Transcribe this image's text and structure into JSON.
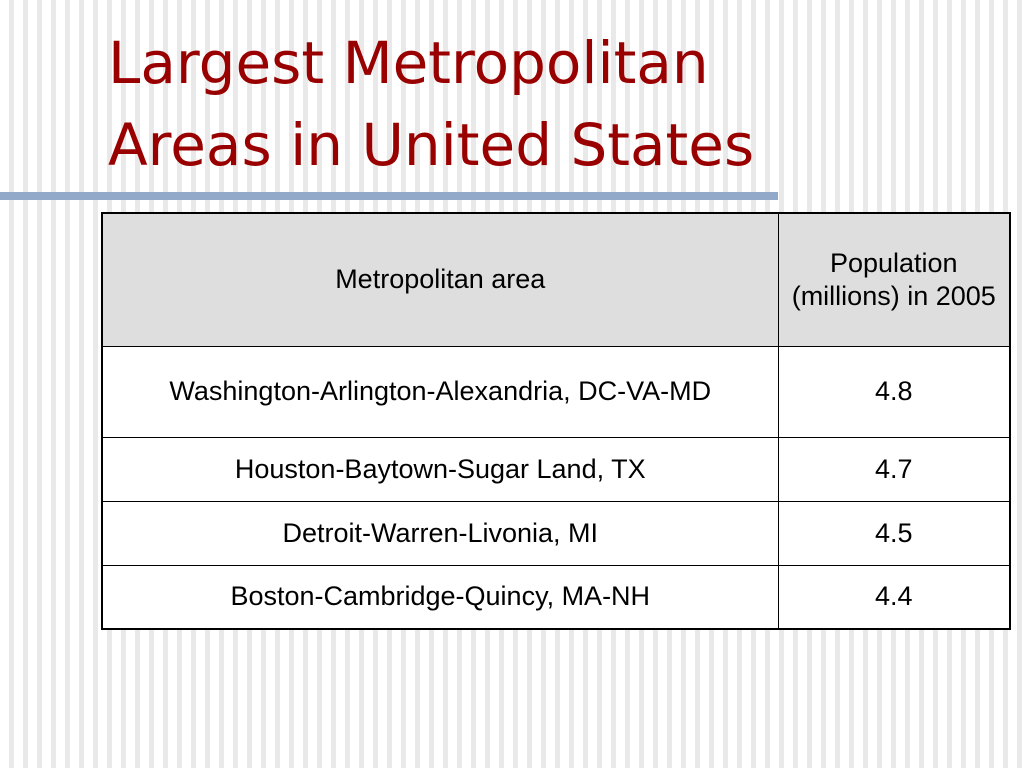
{
  "slide": {
    "title_line1": "Largest Metropolitan",
    "title_line2": "Areas in United States",
    "title_color": "#990000",
    "rule_color": "#92a9c9"
  },
  "table": {
    "headers": {
      "area": "Metropolitan area",
      "population": "Population (millions) in 2005"
    },
    "rows": [
      {
        "area": "Washington-Arlington-Alexandria, DC-VA-MD",
        "population": "4.8"
      },
      {
        "area": "Houston-Baytown-Sugar Land, TX",
        "population": "4.7"
      },
      {
        "area": "Detroit-Warren-Livonia, MI",
        "population": "4.5"
      },
      {
        "area": "Boston-Cambridge-Quincy, MA-NH",
        "population": "4.4"
      }
    ]
  }
}
